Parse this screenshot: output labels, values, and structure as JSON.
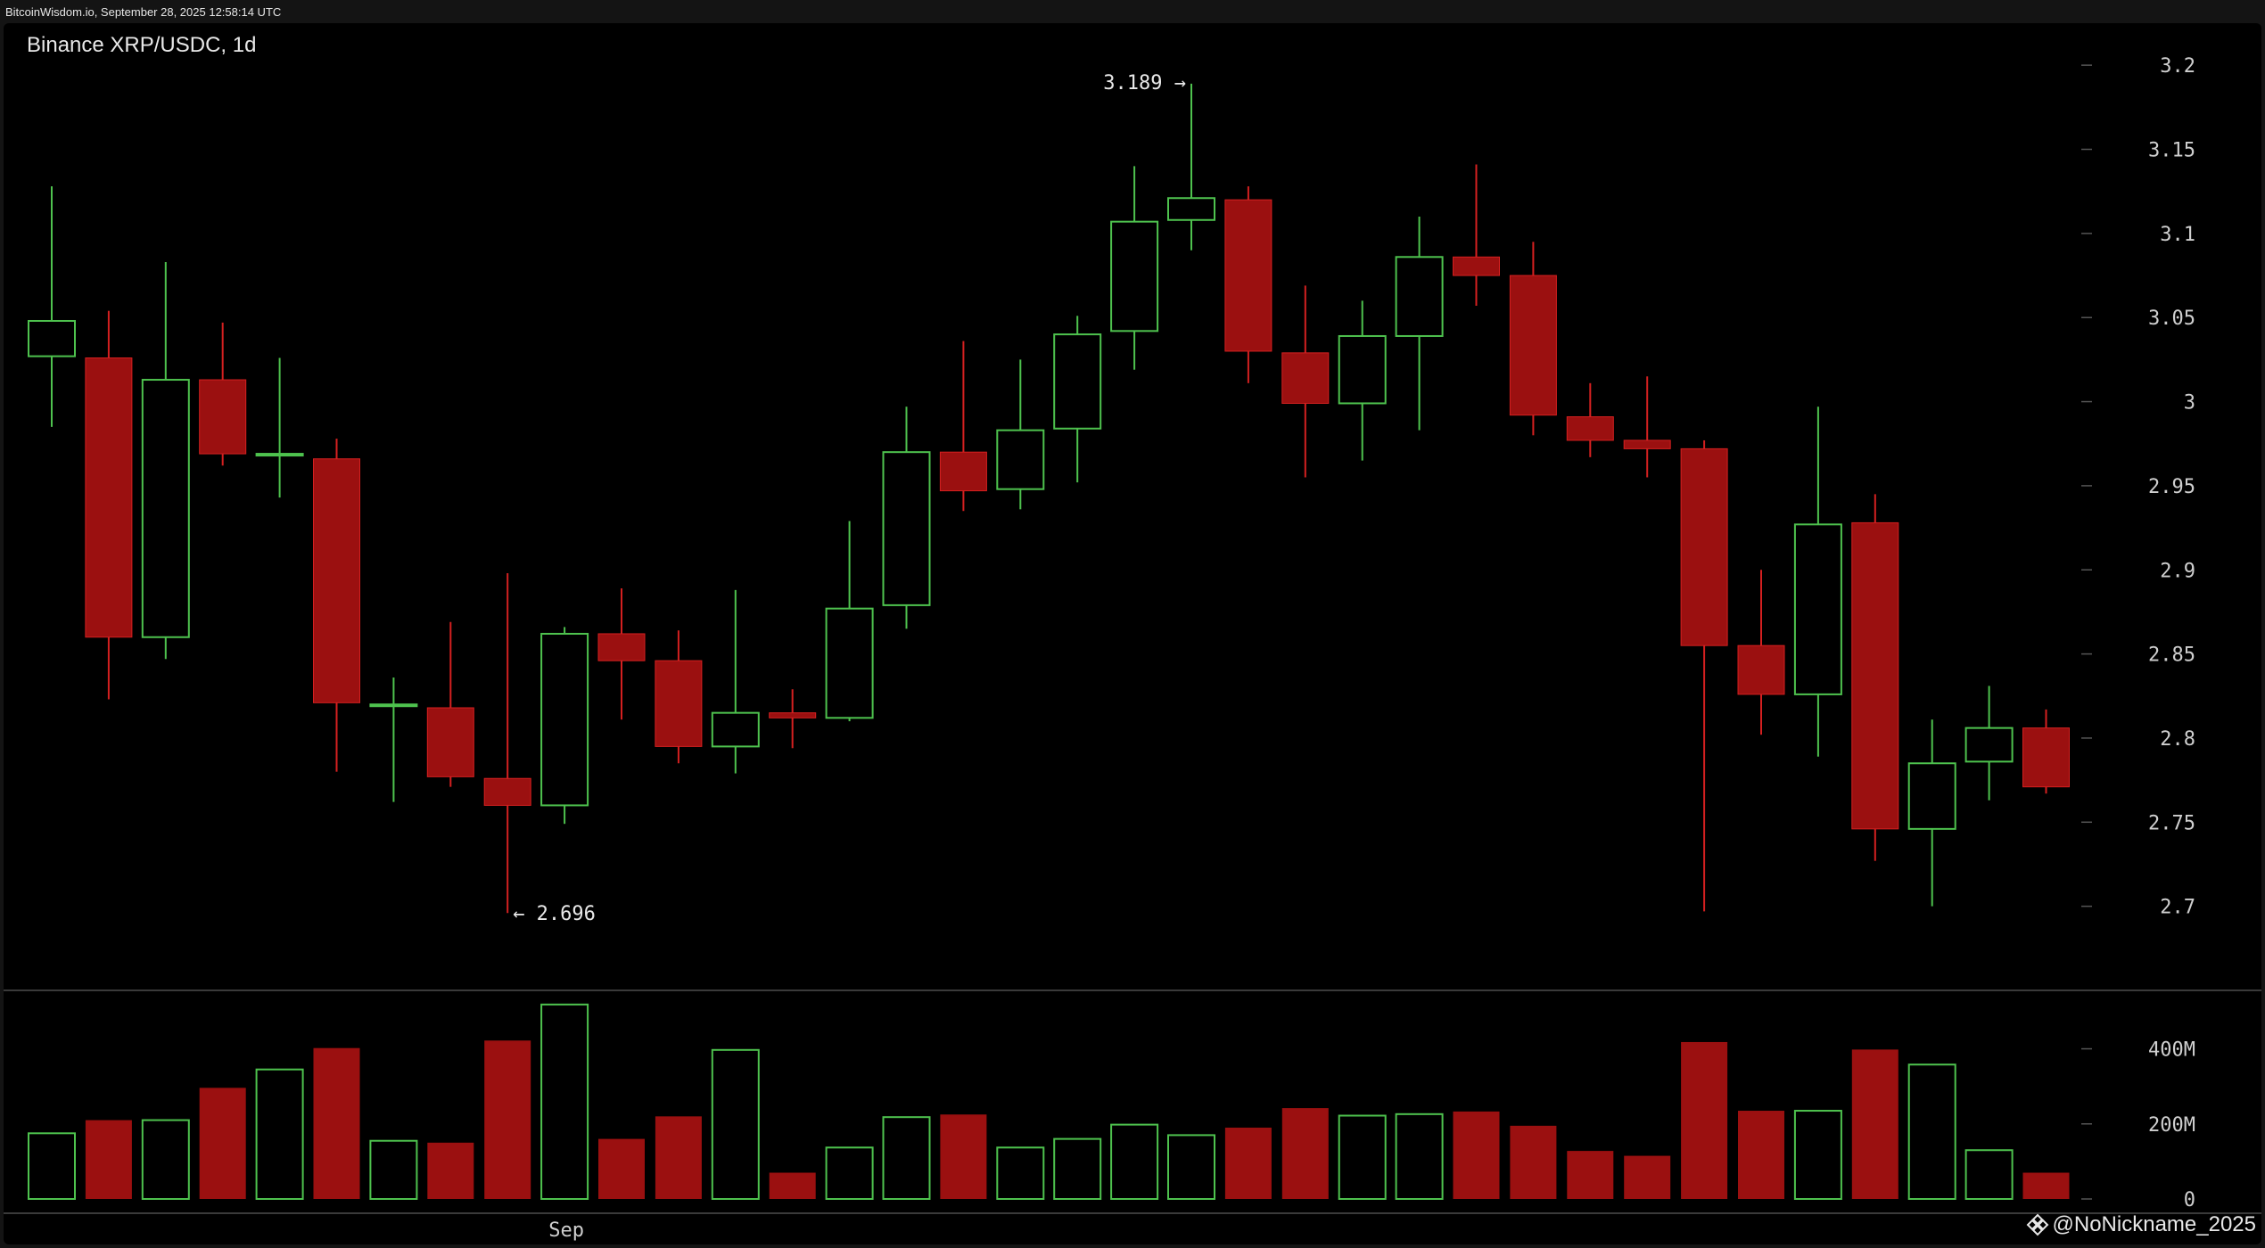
{
  "header": {
    "text": "BitcoinWisdom.io, September 28, 2025 12:58:14 UTC"
  },
  "watermark": {
    "text": "@NoNickname_2025",
    "icon": "binance-logo-icon"
  },
  "colors": {
    "up": "#4ec24e",
    "down": "#9b1010",
    "downWick": "#d42020",
    "axis": "#cfcfcf",
    "background": "#000000"
  },
  "chart_data": {
    "type": "candlestick",
    "title": "Binance XRP/USDC, 1d",
    "ylim": [
      2.65,
      3.225
    ],
    "yticks": [
      2.7,
      2.75,
      2.8,
      2.85,
      2.9,
      2.95,
      3,
      3.05,
      3.1,
      3.15,
      3.2
    ],
    "ytick_labels": [
      "2.7",
      "2.75",
      "2.8",
      "2.85",
      "2.9",
      "2.95",
      "3",
      "3.05",
      "3.1",
      "3.15",
      "3.2"
    ],
    "xtick_labels": [
      {
        "index": 9,
        "label": "Sep"
      }
    ],
    "annotations": [
      {
        "index": 20,
        "price": 3.189,
        "label": "3.189 →"
      },
      {
        "index": 8,
        "price": 2.696,
        "label": "← 2.696"
      }
    ],
    "candles": [
      {
        "o": 3.027,
        "h": 3.128,
        "l": 2.985,
        "c": 3.048,
        "v": 175
      },
      {
        "o": 3.026,
        "h": 3.054,
        "l": 2.823,
        "c": 2.86,
        "v": 210
      },
      {
        "o": 2.86,
        "h": 3.083,
        "l": 2.847,
        "c": 3.013,
        "v": 210
      },
      {
        "o": 3.013,
        "h": 3.047,
        "l": 2.962,
        "c": 2.969,
        "v": 296
      },
      {
        "o": 2.968,
        "h": 3.026,
        "l": 2.943,
        "c": 2.969,
        "v": 345
      },
      {
        "o": 2.966,
        "h": 2.978,
        "l": 2.78,
        "c": 2.821,
        "v": 402
      },
      {
        "o": 2.82,
        "h": 2.836,
        "l": 2.762,
        "c": 2.82,
        "v": 155
      },
      {
        "o": 2.818,
        "h": 2.869,
        "l": 2.771,
        "c": 2.777,
        "v": 150
      },
      {
        "o": 2.776,
        "h": 2.898,
        "l": 2.696,
        "c": 2.76,
        "v": 422
      },
      {
        "o": 2.76,
        "h": 2.866,
        "l": 2.749,
        "c": 2.862,
        "v": 518
      },
      {
        "o": 2.862,
        "h": 2.889,
        "l": 2.811,
        "c": 2.846,
        "v": 160
      },
      {
        "o": 2.846,
        "h": 2.864,
        "l": 2.785,
        "c": 2.795,
        "v": 220
      },
      {
        "o": 2.795,
        "h": 2.888,
        "l": 2.779,
        "c": 2.815,
        "v": 397
      },
      {
        "o": 2.815,
        "h": 2.829,
        "l": 2.794,
        "c": 2.812,
        "v": 70
      },
      {
        "o": 2.812,
        "h": 2.929,
        "l": 2.81,
        "c": 2.877,
        "v": 137
      },
      {
        "o": 2.879,
        "h": 2.997,
        "l": 2.865,
        "c": 2.97,
        "v": 218
      },
      {
        "o": 2.97,
        "h": 3.036,
        "l": 2.935,
        "c": 2.947,
        "v": 225
      },
      {
        "o": 2.948,
        "h": 3.025,
        "l": 2.936,
        "c": 2.983,
        "v": 137
      },
      {
        "o": 2.984,
        "h": 3.051,
        "l": 2.952,
        "c": 3.04,
        "v": 160
      },
      {
        "o": 3.042,
        "h": 3.14,
        "l": 3.019,
        "c": 3.107,
        "v": 198
      },
      {
        "o": 3.108,
        "h": 3.189,
        "l": 3.09,
        "c": 3.121,
        "v": 170
      },
      {
        "o": 3.12,
        "h": 3.128,
        "l": 3.011,
        "c": 3.03,
        "v": 190
      },
      {
        "o": 3.029,
        "h": 3.069,
        "l": 2.955,
        "c": 2.999,
        "v": 242
      },
      {
        "o": 2.999,
        "h": 3.06,
        "l": 2.965,
        "c": 3.039,
        "v": 222
      },
      {
        "o": 3.039,
        "h": 3.11,
        "l": 2.983,
        "c": 3.086,
        "v": 226
      },
      {
        "o": 3.086,
        "h": 3.141,
        "l": 3.057,
        "c": 3.075,
        "v": 233
      },
      {
        "o": 3.075,
        "h": 3.095,
        "l": 2.98,
        "c": 2.992,
        "v": 195
      },
      {
        "o": 2.991,
        "h": 3.011,
        "l": 2.967,
        "c": 2.977,
        "v": 128
      },
      {
        "o": 2.977,
        "h": 3.015,
        "l": 2.955,
        "c": 2.972,
        "v": 115
      },
      {
        "o": 2.972,
        "h": 2.977,
        "l": 2.697,
        "c": 2.855,
        "v": 418
      },
      {
        "o": 2.855,
        "h": 2.9,
        "l": 2.802,
        "c": 2.826,
        "v": 235
      },
      {
        "o": 2.826,
        "h": 2.997,
        "l": 2.789,
        "c": 2.927,
        "v": 235
      },
      {
        "o": 2.928,
        "h": 2.945,
        "l": 2.727,
        "c": 2.746,
        "v": 398
      },
      {
        "o": 2.746,
        "h": 2.811,
        "l": 2.7,
        "c": 2.785,
        "v": 358
      },
      {
        "o": 2.786,
        "h": 2.831,
        "l": 2.763,
        "c": 2.806,
        "v": 130
      },
      {
        "o": 2.806,
        "h": 2.817,
        "l": 2.767,
        "c": 2.771,
        "v": 70
      }
    ],
    "volume": {
      "ylim": [
        0,
        520
      ],
      "yticks": [
        0,
        200,
        400
      ],
      "ytick_labels": [
        "0",
        "200M",
        "400M"
      ]
    }
  }
}
